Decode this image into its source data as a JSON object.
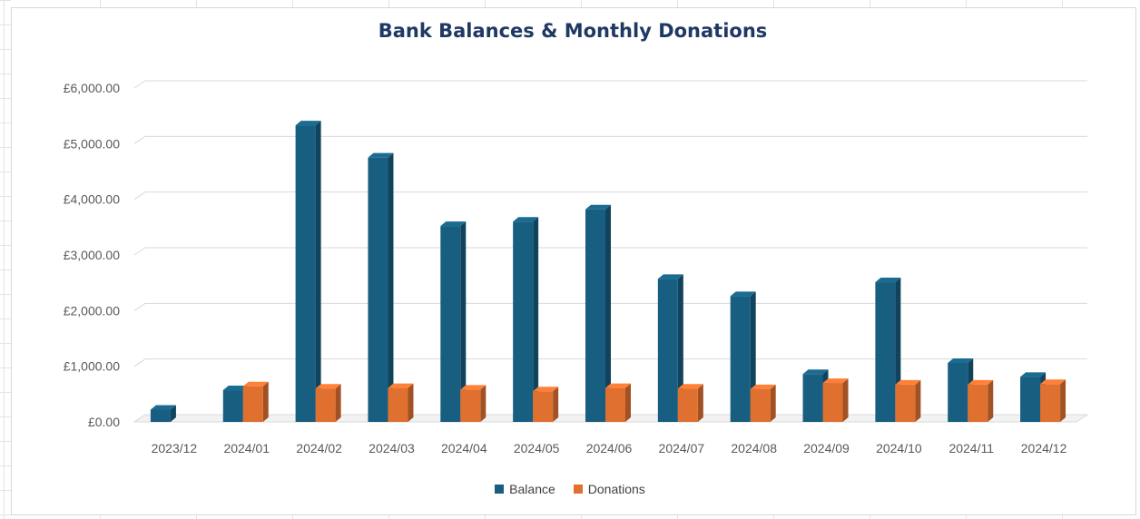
{
  "chart_data": {
    "type": "bar",
    "title": "Bank Balances & Monthly Donations",
    "categories": [
      "2023/12",
      "2024/01",
      "2024/02",
      "2024/03",
      "2024/04",
      "2024/05",
      "2024/06",
      "2024/07",
      "2024/08",
      "2024/09",
      "2024/10",
      "2024/11",
      "2024/12"
    ],
    "series": [
      {
        "name": "Balance",
        "color": "#175e80",
        "values": [
          220,
          570,
          5330,
          4750,
          3520,
          3600,
          3820,
          2570,
          2260,
          860,
          2510,
          1060,
          810
        ]
      },
      {
        "name": "Donations",
        "color": "#e07030",
        "values": [
          null,
          640,
          600,
          610,
          580,
          550,
          610,
          600,
          590,
          700,
          670,
          670,
          680
        ]
      }
    ],
    "ylim": [
      0,
      6000
    ],
    "yticks": [
      0,
      1000,
      2000,
      3000,
      4000,
      5000,
      6000
    ],
    "ytick_labels": [
      "£0.00",
      "£1,000.00",
      "£2,000.00",
      "£3,000.00",
      "£4,000.00",
      "£5,000.00",
      "£6,000.00"
    ],
    "grid": true,
    "legend_position": "bottom",
    "style": "3d-column"
  }
}
